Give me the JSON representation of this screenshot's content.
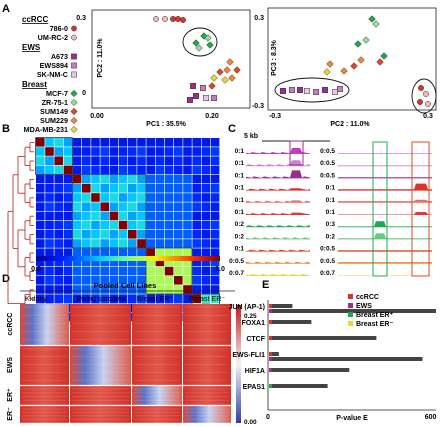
{
  "panels": {
    "a": "A",
    "b": "B",
    "c": "C",
    "d": "D",
    "e": "E"
  },
  "legend": {
    "groups": [
      {
        "title": "ccRCC",
        "items": [
          {
            "name": "786-0",
            "color": "#d9332b",
            "marker": "circle"
          },
          {
            "name": "UM-RC-2",
            "color": "#f5b7b7",
            "marker": "circle"
          }
        ]
      },
      {
        "title": "EWS",
        "items": [
          {
            "name": "A673",
            "color": "#9b2d8e",
            "marker": "square"
          },
          {
            "name": "EWS894",
            "color": "#c77bc4",
            "marker": "square"
          },
          {
            "name": "SK-NM-C",
            "color": "#ecc9ea",
            "marker": "square"
          }
        ]
      },
      {
        "title": "Breast",
        "items": [
          {
            "name": "MCF-7",
            "color": "#1fa84f",
            "marker": "diamond"
          },
          {
            "name": "ZR-75-1",
            "color": "#9ad79f",
            "marker": "diamond"
          },
          {
            "name": "SUM149",
            "color": "#e04a1c",
            "marker": "diamond"
          },
          {
            "name": "SUM229",
            "color": "#f08a3a",
            "marker": "diamond"
          },
          {
            "name": "MDA-MB-231",
            "color": "#e8d838",
            "marker": "diamond"
          }
        ]
      }
    ]
  },
  "pca1": {
    "xlabel": "PC1 : 35.5%",
    "ylabel": "PC2 : 11.0%",
    "xticks": [
      "0.00",
      "0.20"
    ],
    "yticks": [
      "0.3",
      "0"
    ]
  },
  "pca2": {
    "xlabel": "PC2 : 11.0%",
    "ylabel": "PC3 : 8.3%",
    "xticks": [
      "-0.3",
      "0.3"
    ],
    "yticks": [
      "0.3",
      "-0.3"
    ]
  },
  "heatmap": {
    "scale_min": "0.0",
    "scale_max": "1.0"
  },
  "tracks": {
    "scale_label": "5 kb",
    "left": [
      "0:1",
      "0:1",
      "0:1",
      "0:1",
      "0:1",
      "0:1",
      "0:2",
      "0:2",
      "0:1",
      "0:0.5",
      "0:0.7"
    ],
    "right": [
      "0:0.5",
      "0:0.5",
      "0:0.5",
      "0:1",
      "0:1",
      "0:1",
      "0:3",
      "0:2",
      "0:0.5",
      "0:0.5",
      "0:0.7"
    ]
  },
  "heatD": {
    "title": "Pooled Cell Lines",
    "cols": [
      "Kidney",
      "Ewing sarcoma",
      "Breast ER⁺",
      "Breast ER⁻"
    ],
    "rows": [
      "ccRCC",
      "EWS",
      "ER⁺",
      "ER⁻"
    ],
    "scale_max": "0.25",
    "scale_min": "0.00"
  },
  "chart_data": {
    "type": "bar",
    "categories": [
      "JUN (AP-1)",
      "FOXA1",
      "CTCF",
      "EWS-FLI1",
      "HIF1A",
      "EPAS1"
    ],
    "series": [
      {
        "name": "ccRCC",
        "color": "#d9332b"
      },
      {
        "name": "EWS",
        "color": "#9b2d8e"
      },
      {
        "name": "Breast ER⁺",
        "color": "#1fa84f"
      },
      {
        "name": "Breast ER⁻",
        "color": "#e8d838"
      }
    ],
    "values": [
      [
        90,
        620,
        0,
        0
      ],
      [
        160,
        0,
        0,
        0
      ],
      [
        400,
        0,
        0,
        0
      ],
      [
        40,
        570,
        0,
        0
      ],
      [
        0,
        300,
        0,
        0
      ],
      [
        0,
        0,
        220,
        0
      ]
    ],
    "xlabel": "P-value E",
    "xticks": [
      "0",
      "600"
    ],
    "xlim": [
      0,
      620
    ]
  }
}
